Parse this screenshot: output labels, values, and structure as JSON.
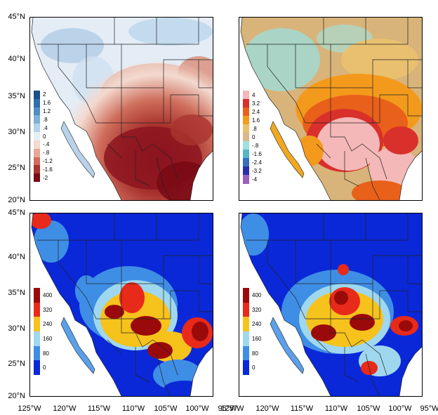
{
  "lat_labels": [
    "45°N",
    "40°N",
    "35°N",
    "30°N",
    "25°N",
    "20°N"
  ],
  "lon_labels": [
    "125°W",
    "120°W",
    "115°W",
    "110°W",
    "105°W",
    "100°W",
    "95°W"
  ],
  "panels": [
    {
      "id": "top-left",
      "colorbar_labels": [
        "2",
        "1.6",
        "1.2",
        ".8",
        ".4",
        "0",
        "-.4",
        "-.8",
        "-1.2",
        "-1.6",
        "-2"
      ],
      "colorbar_colors": [
        "#1b4f8a",
        "#2f6fa8",
        "#4f8fc0",
        "#7fb0d6",
        "#b3d1e8",
        "#e6eef6",
        "#f3d9cf",
        "#e6a898",
        "#cf6e5c",
        "#a9342e",
        "#7a0a15"
      ]
    },
    {
      "id": "top-right",
      "colorbar_labels": [
        "4",
        "3.2",
        "2.4",
        "1.6",
        ".8",
        "0",
        "-.8",
        "-1.6",
        "-2.4",
        "-3.2",
        "-4"
      ],
      "colorbar_colors": [
        "#f4b8b8",
        "#d9302c",
        "#e9601a",
        "#f39a1c",
        "#e8c070",
        "#d9b98a",
        "#9fe0e0",
        "#55b6c8",
        "#3a6fc0",
        "#2a2fa8",
        "#9a60c0"
      ]
    },
    {
      "id": "bottom-left",
      "colorbar_labels": [
        "400",
        "320",
        "240",
        "160",
        "80",
        "0"
      ],
      "colorbar_colors": [
        "#9a0a0a",
        "#e82a1a",
        "#f6c21c",
        "#9fd8ee",
        "#3f8ee6",
        "#0a28d8"
      ]
    },
    {
      "id": "bottom-right",
      "colorbar_labels": [
        "400",
        "320",
        "240",
        "160",
        "80",
        "0"
      ],
      "colorbar_colors": [
        "#9a0a0a",
        "#e82a1a",
        "#f6c21c",
        "#9fd8ee",
        "#3f8ee6",
        "#0a28d8"
      ]
    }
  ]
}
